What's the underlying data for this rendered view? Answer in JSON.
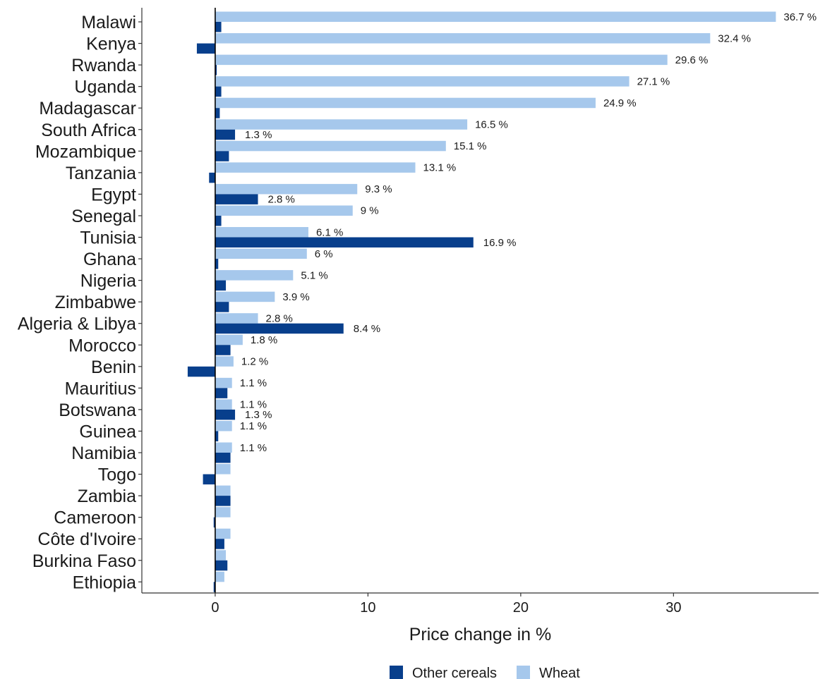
{
  "chart_data": {
    "type": "bar",
    "orientation": "horizontal",
    "categories": [
      "Malawi",
      "Kenya",
      "Rwanda",
      "Uganda",
      "Madagascar",
      "South Africa",
      "Mozambique",
      "Tanzania",
      "Egypt",
      "Senegal",
      "Tunisia",
      "Ghana",
      "Nigeria",
      "Zimbabwe",
      "Algeria & Libya",
      "Morocco",
      "Benin",
      "Mauritius",
      "Botswana",
      "Guinea",
      "Namibia",
      "Togo",
      "Zambia",
      "Cameroon",
      "Côte d'Ivoire",
      "Burkina Faso",
      "Ethiopia"
    ],
    "series": [
      {
        "name": "Other cereals",
        "color": "#083f8c",
        "values": [
          0.4,
          -1.2,
          0.1,
          0.4,
          0.3,
          1.3,
          0.9,
          -0.4,
          2.8,
          0.4,
          16.9,
          0.2,
          0.7,
          0.9,
          8.4,
          1.0,
          -1.8,
          0.8,
          1.3,
          0.2,
          1.0,
          -0.8,
          1.0,
          -0.1,
          0.6,
          0.8,
          -0.1
        ],
        "labels": [
          "",
          "",
          "",
          "",
          "",
          "1.3 %",
          "",
          "",
          "2.8 %",
          "",
          "16.9 %",
          "",
          "",
          "",
          "8.4 %",
          "",
          "",
          "",
          "1.3 %",
          "",
          "",
          "",
          "",
          "",
          "",
          "",
          ""
        ]
      },
      {
        "name": "Wheat",
        "color": "#a6c8ec",
        "values": [
          36.7,
          32.4,
          29.6,
          27.1,
          24.9,
          16.5,
          15.1,
          13.1,
          9.3,
          9.0,
          6.1,
          6.0,
          5.1,
          3.9,
          2.8,
          1.8,
          1.2,
          1.1,
          1.1,
          1.1,
          1.1,
          1.0,
          1.0,
          1.0,
          1.0,
          0.7,
          0.6
        ],
        "labels": [
          "36.7 %",
          "32.4 %",
          "29.6 %",
          "27.1 %",
          "24.9 %",
          "16.5 %",
          "15.1 %",
          "13.1 %",
          "9.3 %",
          "9 %",
          "6.1 %",
          "6 %",
          "5.1 %",
          "3.9 %",
          "2.8 %",
          "1.8 %",
          "1.2 %",
          "1.1 %",
          "1.1 %",
          "1.1 %",
          "1.1 %",
          "",
          "",
          "",
          "",
          "",
          ""
        ]
      }
    ],
    "xlabel": "Price change in %",
    "ylabel": "",
    "xlim": [
      -4.8,
      39.5
    ],
    "xticks": [
      0,
      10,
      20,
      30
    ],
    "xtick_labels": [
      "0",
      "10",
      "20",
      "30"
    ],
    "grid": false,
    "legend_position": "bottom"
  }
}
